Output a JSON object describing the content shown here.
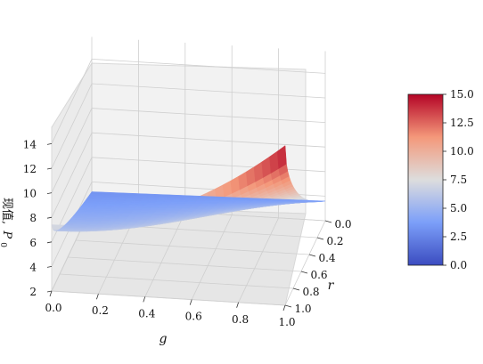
{
  "chart_data": {
    "type": "surface",
    "title": "",
    "xlabel": "g",
    "ylabel": "r",
    "zlabel": "现值, P0",
    "z_label_prefix": "现值,",
    "z_label_symbol": "P",
    "z_label_subscript": "0",
    "x_ticks": [
      "0.0",
      "0.2",
      "0.4",
      "0.6",
      "0.8",
      "1.0"
    ],
    "y_ticks": [
      "0.0",
      "0.2",
      "0.4",
      "0.6",
      "0.8",
      "1.0"
    ],
    "z_ticks": [
      "2",
      "4",
      "6",
      "8",
      "10",
      "12",
      "14"
    ],
    "xlim": [
      0,
      1
    ],
    "ylim": [
      0,
      1
    ],
    "zlim": [
      2,
      15
    ],
    "corner_values": {
      "g0_r1": 3.2,
      "g1_r1": 3.6,
      "g0_r0": 7.4,
      "g1_r0": 15.0
    },
    "colormap": "coolwarm",
    "colorbar": {
      "ticks": [
        "0.0",
        "2.5",
        "5.0",
        "7.5",
        "10.0",
        "12.5",
        "15.0"
      ],
      "range": [
        0,
        15
      ]
    },
    "grid": true,
    "colors": {
      "low": "#3b4cc0",
      "mid": "#dddddd",
      "high": "#b40426"
    }
  }
}
